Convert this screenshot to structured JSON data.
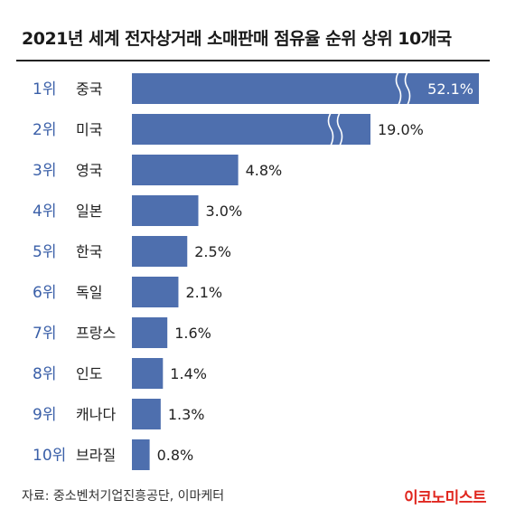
{
  "colors": {
    "bar": "#4e6fae",
    "rank": "#3a5fa8",
    "brand": "#e0271f"
  },
  "chart_data": {
    "type": "bar",
    "orientation": "horizontal",
    "title": "2021년 세계 전자상거래 소매판매 점유율 순위 상위 10개국",
    "ranks": [
      "1위",
      "2위",
      "3위",
      "4위",
      "5위",
      "6위",
      "7위",
      "8위",
      "9위",
      "10위"
    ],
    "categories": [
      "중국",
      "미국",
      "영국",
      "일본",
      "한국",
      "독일",
      "프랑스",
      "인도",
      "캐나다",
      "브라질"
    ],
    "values": [
      52.1,
      19.0,
      4.8,
      3.0,
      2.5,
      2.1,
      1.6,
      1.4,
      1.3,
      0.8
    ],
    "value_labels": [
      "52.1%",
      "19.0%",
      "4.8%",
      "3.0%",
      "2.5%",
      "2.1%",
      "1.6%",
      "1.4%",
      "1.3%",
      "0.8%"
    ],
    "axis_breaks": [
      true,
      true,
      false,
      false,
      false,
      false,
      false,
      false,
      false,
      false
    ],
    "unit": "%",
    "grid": false,
    "legend": "none"
  },
  "footer": {
    "source": "자료: 중소벤처기업진흥공단, 이마케터",
    "brand": "이코노미스트"
  }
}
